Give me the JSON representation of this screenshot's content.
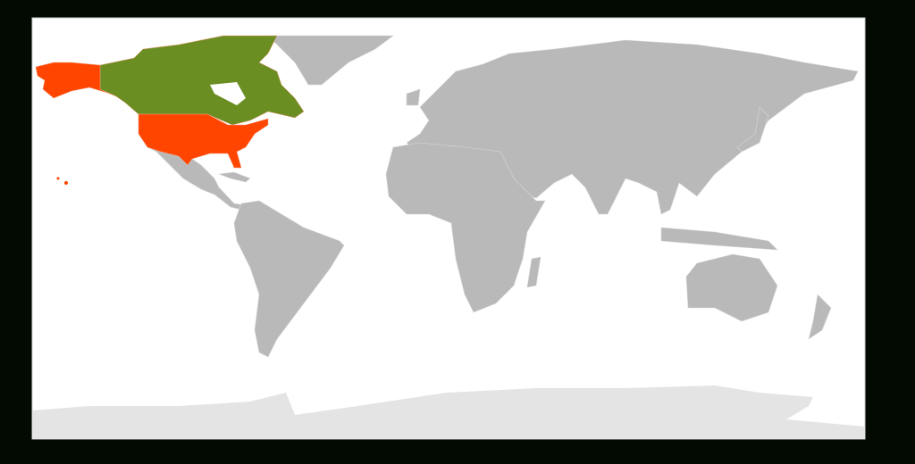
{
  "map": {
    "colors": {
      "page_background": "#020a02",
      "ocean": "#ffffff",
      "land_default": "#b9b9b9",
      "antarctica": "#e4e4e4",
      "highlight_primary": "#ff4500",
      "highlight_secondary": "#6b8e23",
      "border": "#d8d8d8"
    },
    "highlighted_regions": [
      {
        "id": "usa",
        "color_key": "highlight_primary"
      },
      {
        "id": "canada",
        "color_key": "highlight_secondary"
      }
    ]
  }
}
